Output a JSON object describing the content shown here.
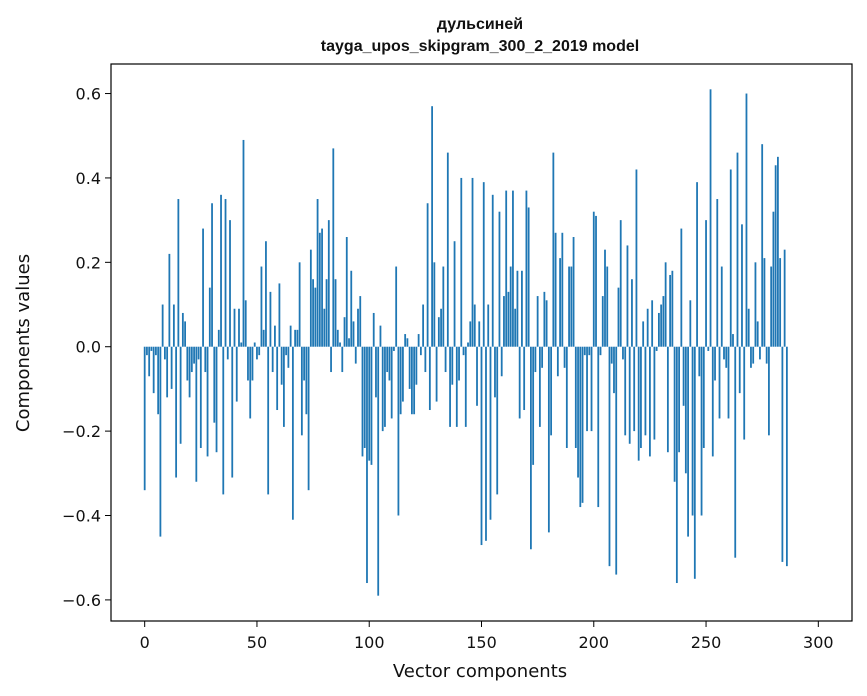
{
  "chart_data": {
    "type": "bar",
    "title": [
      "дульсиней",
      "tayga_upos_skipgram_300_2_2019 model"
    ],
    "xlabel": "Vector components",
    "ylabel": "Components values",
    "xlim": [
      -15,
      315
    ],
    "ylim": [
      -0.65,
      0.67
    ],
    "x_ticks": [
      0,
      50,
      100,
      150,
      200,
      250,
      300
    ],
    "x_tick_labels": [
      "0",
      "50",
      "100",
      "150",
      "200",
      "250",
      "300"
    ],
    "y_ticks": [
      -0.6,
      -0.4,
      -0.2,
      0.0,
      0.2,
      0.4,
      0.6
    ],
    "y_tick_labels": [
      "−0.6",
      "−0.4",
      "−0.2",
      "0.0",
      "0.2",
      "0.4",
      "0.6"
    ],
    "grid": false,
    "bar_color": "#1f77b4",
    "values": [
      -0.34,
      -0.02,
      -0.07,
      -0.01,
      -0.11,
      -0.02,
      -0.16,
      -0.45,
      0.1,
      -0.03,
      -0.12,
      0.22,
      -0.1,
      0.1,
      -0.31,
      0.35,
      -0.23,
      0.08,
      0.06,
      -0.08,
      -0.12,
      -0.06,
      -0.04,
      -0.32,
      -0.03,
      -0.24,
      0.28,
      -0.06,
      -0.26,
      0.14,
      0.34,
      -0.18,
      -0.25,
      0.04,
      0.36,
      -0.35,
      0.35,
      -0.03,
      0.3,
      -0.31,
      0.09,
      -0.13,
      0.09,
      0.01,
      0.49,
      0.11,
      -0.08,
      -0.17,
      -0.08,
      0.01,
      -0.03,
      -0.02,
      0.19,
      0.04,
      0.25,
      -0.35,
      0.13,
      -0.06,
      0.05,
      -0.15,
      0.15,
      -0.09,
      -0.19,
      -0.02,
      -0.05,
      0.05,
      -0.41,
      0.04,
      0.04,
      0.2,
      -0.21,
      -0.08,
      -0.16,
      -0.34,
      0.23,
      0.16,
      0.14,
      0.35,
      0.27,
      0.28,
      0.09,
      0.16,
      0.3,
      -0.06,
      0.47,
      0.16,
      0.04,
      0.01,
      -0.06,
      0.07,
      0.26,
      0.02,
      0.18,
      0.06,
      -0.04,
      0.09,
      0.12,
      -0.26,
      -0.24,
      -0.56,
      -0.27,
      -0.28,
      0.08,
      -0.12,
      -0.59,
      0.05,
      -0.2,
      -0.19,
      -0.06,
      -0.08,
      -0.17,
      -0.01,
      0.19,
      -0.4,
      -0.16,
      -0.13,
      0.03,
      0.02,
      -0.1,
      -0.16,
      -0.16,
      -0.09,
      0.03,
      -0.02,
      0.1,
      -0.06,
      0.34,
      -0.15,
      0.57,
      0.2,
      -0.13,
      0.07,
      0.09,
      0.19,
      -0.06,
      0.46,
      -0.19,
      -0.09,
      0.25,
      -0.19,
      -0.08,
      0.4,
      -0.02,
      -0.19,
      0.01,
      0.06,
      0.4,
      0.1,
      -0.14,
      0.06,
      -0.47,
      0.39,
      -0.46,
      0.1,
      -0.41,
      0.36,
      -0.12,
      -0.35,
      0.32,
      -0.07,
      0.12,
      0.37,
      0.13,
      0.19,
      0.37,
      0.09,
      0.18,
      -0.17,
      0.18,
      -0.15,
      0.37,
      0.33,
      -0.48,
      -0.28,
      -0.06,
      0.12,
      -0.19,
      -0.05,
      0.13,
      0.11,
      -0.44,
      -0.21,
      0.46,
      0.27,
      -0.07,
      0.21,
      0.27,
      -0.05,
      -0.24,
      0.19,
      0.19,
      0.26,
      -0.24,
      -0.31,
      -0.38,
      -0.37,
      -0.02,
      -0.2,
      -0.02,
      -0.2,
      0.32,
      0.31,
      -0.38,
      -0.02,
      0.12,
      0.23,
      0.19,
      -0.52,
      -0.04,
      -0.11,
      -0.54,
      0.14,
      0.3,
      -0.03,
      -0.21,
      0.24,
      -0.23,
      0.16,
      -0.2,
      0.42,
      -0.27,
      -0.24,
      0.06,
      -0.21,
      0.09,
      -0.26,
      0.11,
      -0.22,
      -0.01,
      0.08,
      0.1,
      0.12,
      0.2,
      -0.25,
      0.17,
      0.18,
      -0.32,
      -0.56,
      -0.25,
      0.28,
      -0.14,
      -0.3,
      -0.45,
      0.11,
      -0.4,
      -0.55,
      0.39,
      -0.07,
      -0.4,
      -0.24,
      0.3,
      -0.01,
      0.61,
      -0.26,
      -0.08,
      0.35,
      -0.17,
      0.19,
      -0.03,
      -0.05,
      -0.17,
      0.42,
      0.03,
      -0.5,
      0.46,
      -0.11,
      0.29,
      -0.22,
      0.6,
      0.09,
      -0.05,
      -0.04,
      0.2,
      0.06,
      -0.03,
      0.48,
      0.21,
      -0.04,
      -0.21,
      0.19,
      0.32,
      0.43,
      0.45,
      0.21,
      -0.51,
      0.23,
      -0.52
    ]
  }
}
